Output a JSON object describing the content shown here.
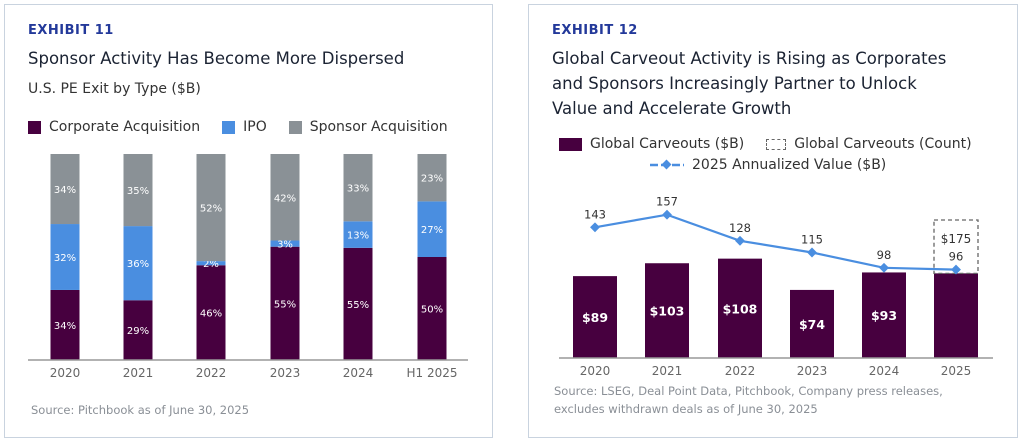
{
  "exhibit11": {
    "label": "EXHIBIT 11",
    "title": "Sponsor Activity Has Become More Dispersed",
    "source": "Source: Pitchbook as of June 30, 2025"
  },
  "exhibit12": {
    "label": "EXHIBIT 12",
    "title_lines": [
      "Global Carveout Activity is Rising as Corporates",
      "and Sponsors Increasingly Partner to Unlock",
      "Value and Accelerate Growth"
    ],
    "source_lines": [
      "Source: LSEG, Deal Point Data, Pitchbook, Company press releases,",
      "excludes withdrawn deals as of June 30, 2025"
    ]
  },
  "chart_data": [
    {
      "type": "bar",
      "stacked": true,
      "title": "U.S. PE Exit by Type ($B)",
      "categories": [
        "2020",
        "2021",
        "2022",
        "2023",
        "2024",
        "H1 2025"
      ],
      "series": [
        {
          "name": "Corporate Acquisition",
          "color": "#47003f",
          "values": [
            34,
            29,
            46,
            55,
            55,
            50
          ],
          "labels": [
            "34%",
            "29%",
            "46%",
            "55%",
            "55%",
            "50%"
          ]
        },
        {
          "name": "IPO",
          "color": "#4a8ee0",
          "values": [
            32,
            36,
            2,
            3,
            13,
            27
          ],
          "labels": [
            "32%",
            "36%",
            "2%",
            "3%",
            "13%",
            "27%"
          ]
        },
        {
          "name": "Sponsor Acquisition",
          "color": "#8a9196",
          "values": [
            34,
            35,
            52,
            42,
            33,
            23
          ],
          "labels": [
            "34%",
            "35%",
            "52%",
            "42%",
            "33%",
            "23%"
          ]
        }
      ],
      "legend": "top-left",
      "grid": false
    },
    {
      "type": "bar",
      "categories": [
        "2020",
        "2021",
        "2022",
        "2023",
        "2024",
        "2025"
      ],
      "series": [
        {
          "name": "Global Carveouts ($B)",
          "color": "#47003f",
          "values": [
            89,
            103,
            108,
            74,
            93,
            92
          ],
          "labels": [
            "$89",
            "$103",
            "$108",
            "$74",
            "$93",
            ""
          ]
        },
        {
          "name": "Global Carveouts (Count)",
          "type": "line",
          "color": "#4a8ee0",
          "values": [
            143,
            157,
            128,
            115,
            98,
            96
          ],
          "labels": [
            "143",
            "157",
            "128",
            "115",
            "98",
            "96"
          ]
        },
        {
          "name": "2025 Annualized Value ($B)",
          "style": "dashed-box",
          "category": "2025",
          "value": 175,
          "label": "$175"
        }
      ],
      "legend_labels": {
        "bar": "Global Carveouts ($B)",
        "dashed": "Global Carveouts (Count)",
        "line": "2025 Annualized Value ($B)"
      },
      "legend": "top",
      "grid": false
    }
  ]
}
